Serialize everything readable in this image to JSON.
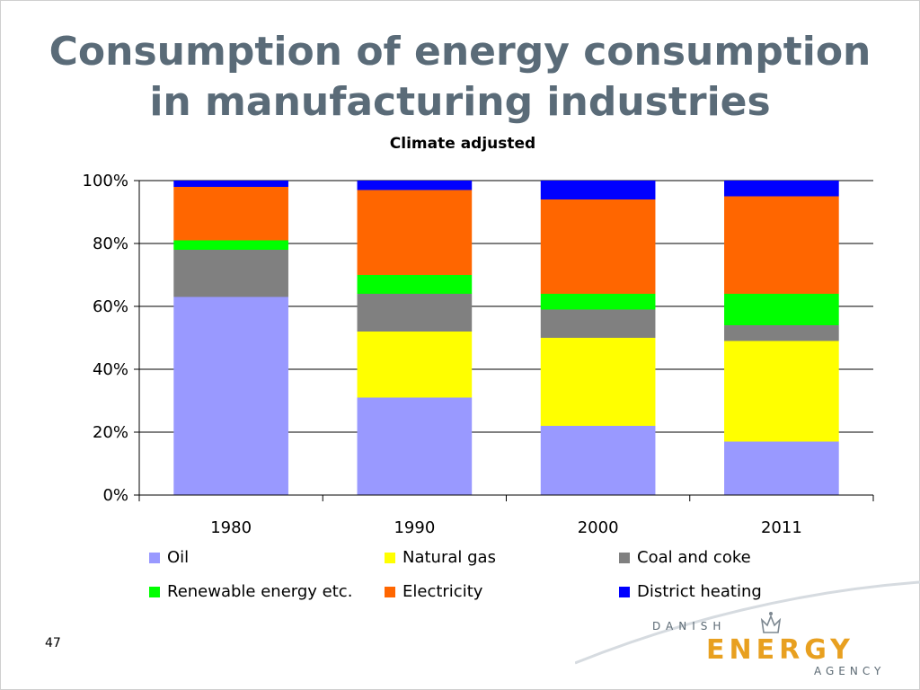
{
  "slide": {
    "title_line1": "Consumption of energy consumption",
    "title_line2": "in manufacturing industries",
    "page_number": "47"
  },
  "logo": {
    "line1": "DANISH",
    "line2": "ENERGY",
    "line3": "AGENCY"
  },
  "chart_data": {
    "type": "bar",
    "stacked": true,
    "percent": true,
    "title": "Climate adjusted",
    "categories": [
      "1980",
      "1990",
      "2000",
      "2011"
    ],
    "yticks": [
      "0%",
      "20%",
      "40%",
      "60%",
      "80%",
      "100%"
    ],
    "ylim": [
      0,
      100
    ],
    "grid": true,
    "legend_position": "bottom",
    "series": [
      {
        "name": "Oil",
        "color": "#9999ff",
        "values": [
          63,
          31,
          22,
          17
        ]
      },
      {
        "name": "Natural gas",
        "color": "#ffff00",
        "values": [
          0,
          21,
          28,
          32
        ]
      },
      {
        "name": "Coal and coke",
        "color": "#808080",
        "values": [
          15,
          12,
          9,
          5
        ]
      },
      {
        "name": "Renewable energy etc.",
        "color": "#00ff00",
        "values": [
          3,
          6,
          5,
          10
        ]
      },
      {
        "name": "Electricity",
        "color": "#ff6600",
        "values": [
          17,
          27,
          30,
          31
        ]
      },
      {
        "name": "District heating",
        "color": "#0000ff",
        "values": [
          2,
          3,
          6,
          5
        ]
      }
    ]
  }
}
